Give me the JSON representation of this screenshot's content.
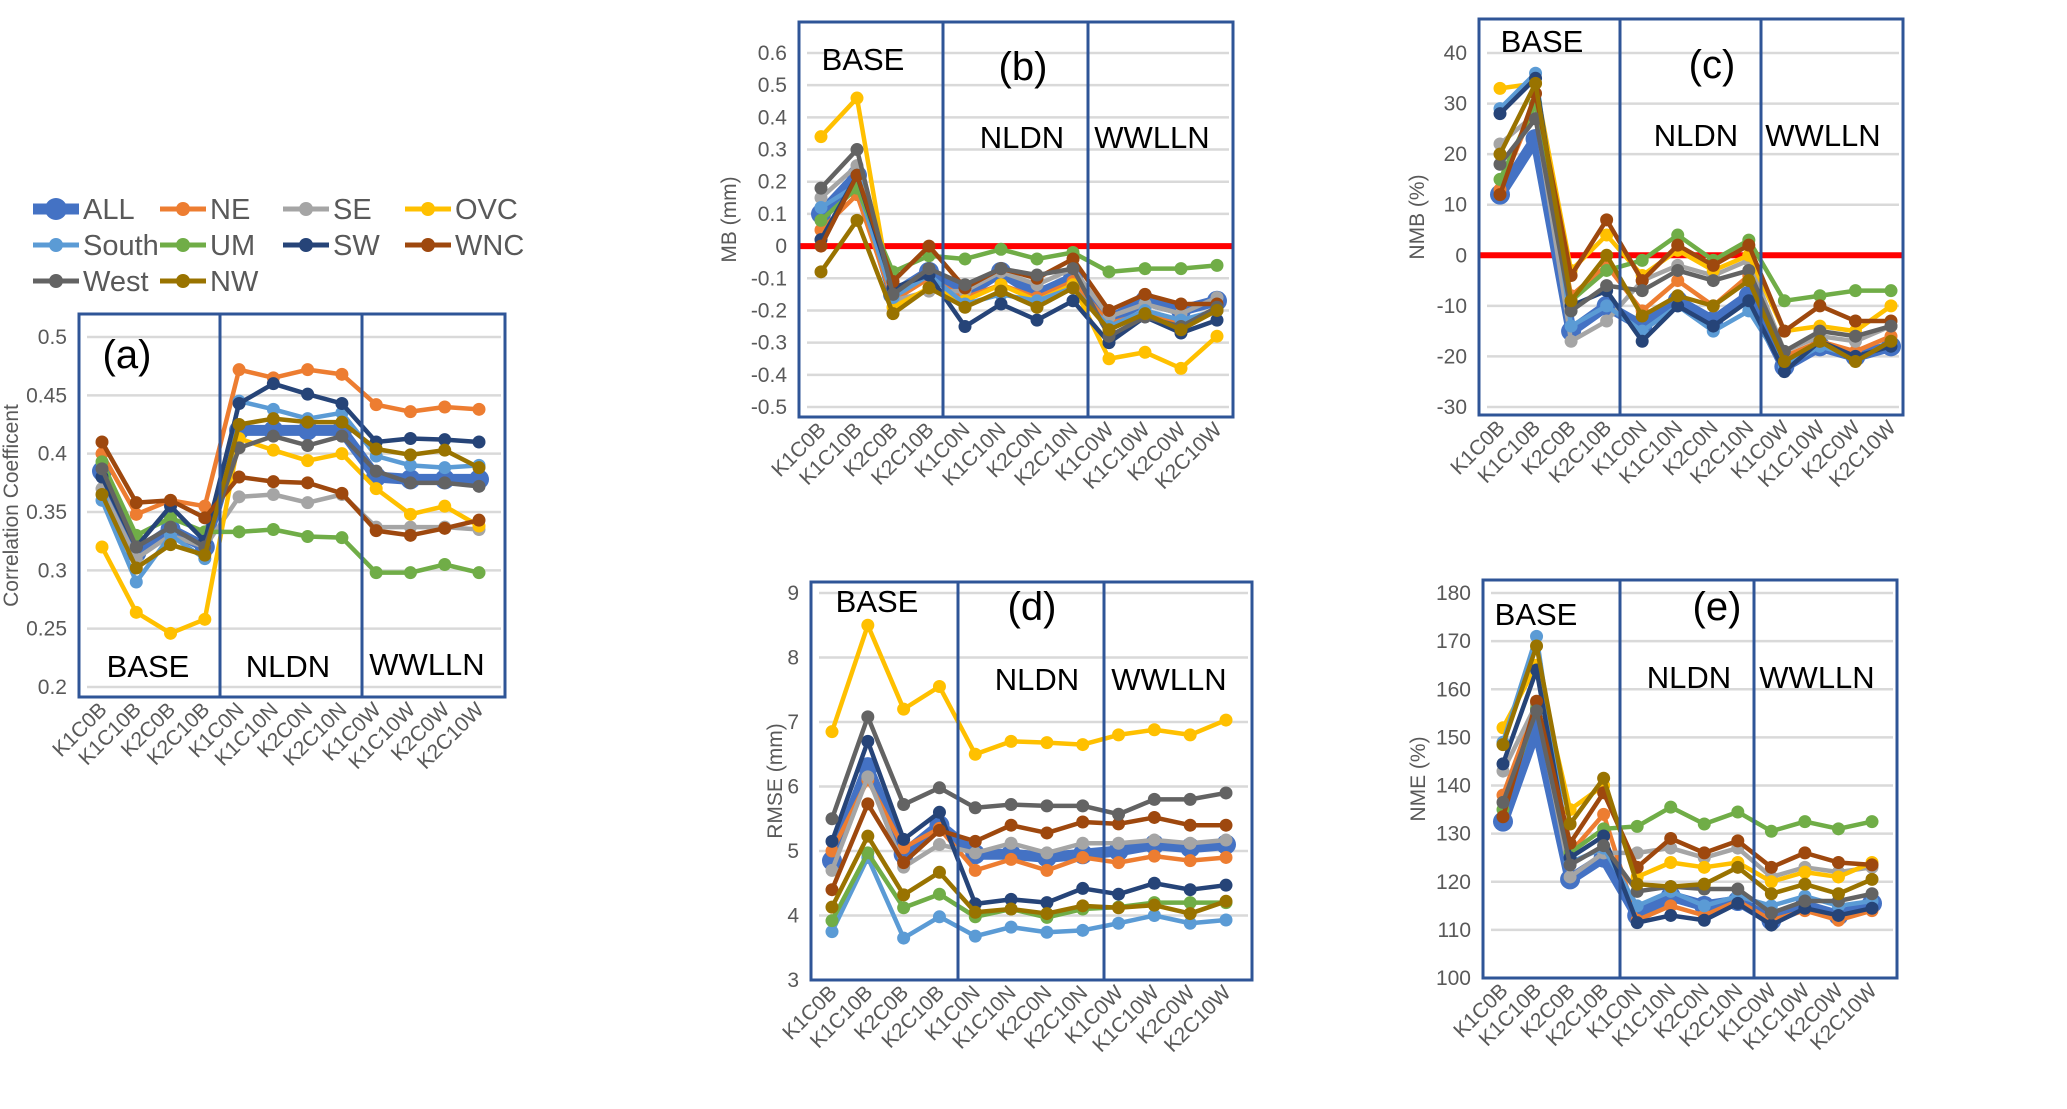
{
  "chart_data": [
    {
      "type": "line",
      "panel_label": "(a)",
      "ylabel": "Correlation Coefficent",
      "ylim": [
        0.2,
        0.5
      ],
      "ytick_labels": [
        "0.2",
        "0.25",
        "0.3",
        "0.35",
        "0.4",
        "0.45",
        "0.5"
      ],
      "sections": [
        "BASE",
        "NLDN",
        "WWLLN"
      ],
      "legend": "top",
      "series": [
        {
          "name": "ALL",
          "color": "#4472C4",
          "values": [
            0.385,
            0.315,
            0.335,
            0.32,
            0.42,
            0.42,
            0.42,
            0.42,
            0.38,
            0.378,
            0.378,
            0.378
          ]
        },
        {
          "name": "NE",
          "color": "#ED7D31",
          "values": [
            0.4,
            0.348,
            0.36,
            0.355,
            0.472,
            0.465,
            0.472,
            0.468,
            0.442,
            0.436,
            0.44,
            0.438
          ]
        },
        {
          "name": "SE",
          "color": "#A5A5A5",
          "values": [
            0.37,
            0.31,
            0.33,
            0.32,
            0.363,
            0.365,
            0.358,
            0.365,
            0.337,
            0.337,
            0.337,
            0.335
          ]
        },
        {
          "name": "OVC",
          "color": "#FFC000",
          "values": [
            0.32,
            0.264,
            0.246,
            0.258,
            0.413,
            0.403,
            0.394,
            0.4,
            0.37,
            0.348,
            0.355,
            0.338
          ]
        },
        {
          "name": "South",
          "color": "#5B9BD5",
          "values": [
            0.36,
            0.29,
            0.33,
            0.31,
            0.445,
            0.438,
            0.43,
            0.435,
            0.398,
            0.39,
            0.388,
            0.39
          ]
        },
        {
          "name": "UM",
          "color": "#70AD47",
          "values": [
            0.393,
            0.33,
            0.345,
            0.333,
            0.333,
            0.335,
            0.329,
            0.328,
            0.298,
            0.298,
            0.305,
            0.298
          ]
        },
        {
          "name": "SW",
          "color": "#264478",
          "values": [
            0.38,
            0.32,
            0.355,
            0.325,
            0.443,
            0.46,
            0.451,
            0.443,
            0.41,
            0.413,
            0.412,
            0.41
          ]
        },
        {
          "name": "WNC",
          "color": "#9E480E",
          "values": [
            0.41,
            0.358,
            0.36,
            0.345,
            0.38,
            0.376,
            0.375,
            0.366,
            0.334,
            0.33,
            0.336,
            0.343
          ]
        },
        {
          "name": "West",
          "color": "#636363",
          "values": [
            0.387,
            0.32,
            0.337,
            0.32,
            0.405,
            0.415,
            0.407,
            0.415,
            0.385,
            0.375,
            0.375,
            0.372
          ]
        },
        {
          "name": "NW",
          "color": "#997300",
          "values": [
            0.365,
            0.302,
            0.322,
            0.313,
            0.425,
            0.43,
            0.427,
            0.427,
            0.404,
            0.399,
            0.403,
            0.388
          ]
        }
      ]
    },
    {
      "type": "line",
      "panel_label": "(b)",
      "ylabel": "MB (mm)",
      "ylim": [
        -0.5,
        0.6
      ],
      "ytick_labels": [
        "-0.5",
        "-0.4",
        "-0.3",
        "-0.2",
        "-0.1",
        "0",
        "0.1",
        "0.2",
        "0.3",
        "0.4",
        "0.5",
        "0.6"
      ],
      "sections": [
        "BASE",
        "NLDN",
        "WWLLN"
      ],
      "reference_line": {
        "value": 0,
        "color": "#FF0000"
      },
      "series": [
        {
          "name": "ALL",
          "color": "#4472C4",
          "values": [
            0.1,
            0.22,
            -0.15,
            -0.08,
            -0.15,
            -0.08,
            -0.15,
            -0.1,
            -0.23,
            -0.17,
            -0.2,
            -0.17
          ]
        },
        {
          "name": "NE",
          "color": "#ED7D31",
          "values": [
            0.05,
            0.16,
            -0.17,
            -0.1,
            -0.16,
            -0.12,
            -0.16,
            -0.11,
            -0.24,
            -0.21,
            -0.24,
            -0.2
          ]
        },
        {
          "name": "SE",
          "color": "#A5A5A5",
          "values": [
            0.15,
            0.25,
            -0.17,
            -0.14,
            -0.14,
            -0.08,
            -0.12,
            -0.07,
            -0.22,
            -0.18,
            -0.21,
            -0.16
          ]
        },
        {
          "name": "OVC",
          "color": "#FFC000",
          "values": [
            0.34,
            0.46,
            -0.19,
            -0.13,
            -0.17,
            -0.12,
            -0.17,
            -0.12,
            -0.35,
            -0.33,
            -0.38,
            -0.28
          ]
        },
        {
          "name": "South",
          "color": "#5B9BD5",
          "values": [
            0.12,
            0.19,
            -0.16,
            -0.09,
            -0.18,
            -0.15,
            -0.17,
            -0.13,
            -0.25,
            -0.2,
            -0.23,
            -0.2
          ]
        },
        {
          "name": "UM",
          "color": "#70AD47",
          "values": [
            0.08,
            0.18,
            -0.08,
            -0.03,
            -0.04,
            -0.01,
            -0.04,
            -0.02,
            -0.08,
            -0.07,
            -0.07,
            -0.06
          ]
        },
        {
          "name": "SW",
          "color": "#264478",
          "values": [
            0.02,
            0.22,
            -0.13,
            -0.09,
            -0.25,
            -0.18,
            -0.23,
            -0.17,
            -0.3,
            -0.22,
            -0.27,
            -0.23
          ]
        },
        {
          "name": "WNC",
          "color": "#9E480E",
          "values": [
            0.0,
            0.22,
            -0.11,
            0.0,
            -0.13,
            -0.07,
            -0.1,
            -0.04,
            -0.2,
            -0.15,
            -0.18,
            -0.18
          ]
        },
        {
          "name": "West",
          "color": "#636363",
          "values": [
            0.18,
            0.3,
            -0.15,
            -0.07,
            -0.12,
            -0.07,
            -0.09,
            -0.07,
            -0.28,
            -0.22,
            -0.25,
            -0.19
          ]
        },
        {
          "name": "NW",
          "color": "#997300",
          "values": [
            -0.08,
            0.08,
            -0.21,
            -0.13,
            -0.19,
            -0.14,
            -0.19,
            -0.13,
            -0.26,
            -0.21,
            -0.26,
            -0.2
          ]
        }
      ]
    },
    {
      "type": "line",
      "panel_label": "(c)",
      "ylabel": "NMB (%)",
      "ylim": [
        -30,
        40
      ],
      "ytick_labels": [
        "-30",
        "-20",
        "-10",
        "0",
        "10",
        "20",
        "30",
        "40"
      ],
      "sections": [
        "BASE",
        "NLDN",
        "WWLLN"
      ],
      "reference_line": {
        "value": 0,
        "color": "#FF0000"
      },
      "series": [
        {
          "name": "ALL",
          "color": "#4472C4",
          "values": [
            12,
            23,
            -15,
            -10,
            -14,
            -9,
            -13,
            -8,
            -22,
            -18,
            -20,
            -18
          ]
        },
        {
          "name": "NE",
          "color": "#ED7D31",
          "values": [
            13,
            30,
            -8,
            -2,
            -11,
            -5,
            -10,
            -4,
            -20,
            -17,
            -19,
            -16
          ]
        },
        {
          "name": "SE",
          "color": "#A5A5A5",
          "values": [
            22,
            28,
            -17,
            -13,
            -5,
            -2,
            -4,
            -1,
            -19,
            -16,
            -17,
            -14
          ]
        },
        {
          "name": "OVC",
          "color": "#FFC000",
          "values": [
            33,
            34,
            -3,
            4,
            -4,
            1,
            -3,
            0,
            -15,
            -14,
            -15,
            -10
          ]
        },
        {
          "name": "South",
          "color": "#5B9BD5",
          "values": [
            29,
            36,
            -14,
            -10,
            -15,
            -10,
            -15,
            -11,
            -22,
            -18,
            -20,
            -18
          ]
        },
        {
          "name": "UM",
          "color": "#70AD47",
          "values": [
            15,
            30,
            -9,
            -3,
            -1,
            4,
            -1,
            3,
            -9,
            -8,
            -7,
            -7
          ]
        },
        {
          "name": "SW",
          "color": "#264478",
          "values": [
            28,
            35,
            -10,
            -7,
            -17,
            -10,
            -14,
            -9,
            -23,
            -17,
            -20,
            -18
          ]
        },
        {
          "name": "WNC",
          "color": "#9E480E",
          "values": [
            12,
            32,
            -4,
            7,
            -5,
            2,
            -2,
            2,
            -15,
            -10,
            -13,
            -13
          ]
        },
        {
          "name": "West",
          "color": "#636363",
          "values": [
            18,
            27,
            -11,
            -6,
            -7,
            -3,
            -5,
            -3,
            -19,
            -15,
            -16,
            -14
          ]
        },
        {
          "name": "NW",
          "color": "#997300",
          "values": [
            20,
            34,
            -9,
            0,
            -12,
            -8,
            -10,
            -5,
            -21,
            -17,
            -21,
            -17
          ]
        }
      ]
    },
    {
      "type": "line",
      "panel_label": "(d)",
      "ylabel": "RMSE (mm)",
      "ylim": [
        3,
        9
      ],
      "ytick_labels": [
        "3",
        "4",
        "5",
        "6",
        "7",
        "8",
        "9"
      ],
      "sections": [
        "BASE",
        "NLDN",
        "WWLLN"
      ],
      "series": [
        {
          "name": "ALL",
          "color": "#4472C4",
          "values": [
            4.85,
            6.3,
            4.95,
            5.4,
            4.95,
            4.95,
            4.9,
            4.95,
            5.0,
            5.1,
            5.05,
            5.1
          ]
        },
        {
          "name": "NE",
          "color": "#ED7D31",
          "values": [
            5.0,
            6.1,
            5.05,
            5.35,
            4.7,
            4.87,
            4.7,
            4.9,
            4.82,
            4.92,
            4.85,
            4.9
          ]
        },
        {
          "name": "SE",
          "color": "#A5A5A5",
          "values": [
            4.7,
            6.15,
            4.75,
            5.1,
            4.97,
            5.12,
            4.97,
            5.12,
            5.12,
            5.17,
            5.12,
            5.17
          ]
        },
        {
          "name": "OVC",
          "color": "#FFC000",
          "values": [
            6.85,
            8.5,
            7.2,
            7.55,
            6.5,
            6.7,
            6.68,
            6.65,
            6.8,
            6.88,
            6.8,
            7.03
          ]
        },
        {
          "name": "South",
          "color": "#5B9BD5",
          "values": [
            3.75,
            4.9,
            3.65,
            3.98,
            3.68,
            3.82,
            3.74,
            3.77,
            3.88,
            4.0,
            3.88,
            3.93
          ]
        },
        {
          "name": "UM",
          "color": "#70AD47",
          "values": [
            3.92,
            4.97,
            4.12,
            4.33,
            3.98,
            4.1,
            3.97,
            4.1,
            4.13,
            4.2,
            4.2,
            4.2
          ]
        },
        {
          "name": "SW",
          "color": "#264478",
          "values": [
            5.15,
            6.7,
            5.18,
            5.6,
            4.18,
            4.25,
            4.2,
            4.42,
            4.33,
            4.5,
            4.4,
            4.47
          ]
        },
        {
          "name": "WNC",
          "color": "#9E480E",
          "values": [
            4.4,
            5.73,
            4.82,
            5.32,
            5.15,
            5.4,
            5.28,
            5.45,
            5.42,
            5.52,
            5.4,
            5.4
          ]
        },
        {
          "name": "West",
          "color": "#636363",
          "values": [
            5.5,
            7.08,
            5.72,
            5.98,
            5.67,
            5.72,
            5.7,
            5.7,
            5.57,
            5.8,
            5.8,
            5.9
          ]
        },
        {
          "name": "NW",
          "color": "#997300",
          "values": [
            4.13,
            5.23,
            4.32,
            4.67,
            4.05,
            4.1,
            4.03,
            4.15,
            4.12,
            4.16,
            4.03,
            4.22
          ]
        }
      ]
    },
    {
      "type": "line",
      "panel_label": "(e)",
      "ylabel": "NME (%)",
      "ylim": [
        100,
        180
      ],
      "ytick_labels": [
        "100",
        "110",
        "120",
        "130",
        "140",
        "150",
        "160",
        "170",
        "180"
      ],
      "sections": [
        "BASE",
        "NLDN",
        "WWLLN"
      ],
      "series": [
        {
          "name": "ALL",
          "color": "#4472C4",
          "values": [
            132.5,
            152,
            120.5,
            125,
            113,
            117,
            115,
            116,
            112,
            115,
            113,
            115.5
          ]
        },
        {
          "name": "NE",
          "color": "#ED7D31",
          "values": [
            138,
            157,
            126,
            134,
            112,
            115,
            113,
            116,
            112,
            114,
            112,
            114
          ]
        },
        {
          "name": "SE",
          "color": "#A5A5A5",
          "values": [
            143,
            157,
            121,
            126,
            126,
            127,
            125,
            127,
            121,
            123,
            122,
            123
          ]
        },
        {
          "name": "OVC",
          "color": "#FFC000",
          "values": [
            152,
            165,
            135,
            140,
            121,
            124,
            123,
            124,
            120,
            122,
            121,
            124
          ]
        },
        {
          "name": "South",
          "color": "#5B9BD5",
          "values": [
            149,
            171,
            124,
            127,
            115,
            118,
            115,
            117,
            115,
            117,
            115,
            116
          ]
        },
        {
          "name": "UM",
          "color": "#70AD47",
          "values": [
            135,
            156,
            126,
            131,
            131.5,
            135.5,
            132,
            134.5,
            130.5,
            132.5,
            131,
            132.5
          ]
        },
        {
          "name": "SW",
          "color": "#264478",
          "values": [
            144.5,
            164,
            125,
            129.5,
            111.5,
            113,
            112,
            115.5,
            111,
            114.5,
            113,
            114.5
          ]
        },
        {
          "name": "WNC",
          "color": "#9E480E",
          "values": [
            133.5,
            157.5,
            128,
            138.5,
            123,
            129,
            126,
            128.5,
            123,
            126,
            124,
            123.5
          ]
        },
        {
          "name": "West",
          "color": "#636363",
          "values": [
            136.5,
            155.5,
            123.5,
            127.5,
            118,
            119,
            118.5,
            118.5,
            113.5,
            116,
            116,
            117.5
          ]
        },
        {
          "name": "NW",
          "color": "#997300",
          "values": [
            148.5,
            169,
            132,
            141.5,
            119.5,
            119,
            119.5,
            123,
            117.5,
            119.5,
            117.5,
            120.5
          ]
        }
      ]
    }
  ],
  "categories": [
    "K1C0B",
    "K1C10B",
    "K2C0B",
    "K2C10B",
    "K1C0N",
    "K1C10N",
    "K2C0N",
    "K2C10N",
    "K1C0W",
    "K1C10W",
    "K2C0W",
    "K2C10W"
  ]
}
